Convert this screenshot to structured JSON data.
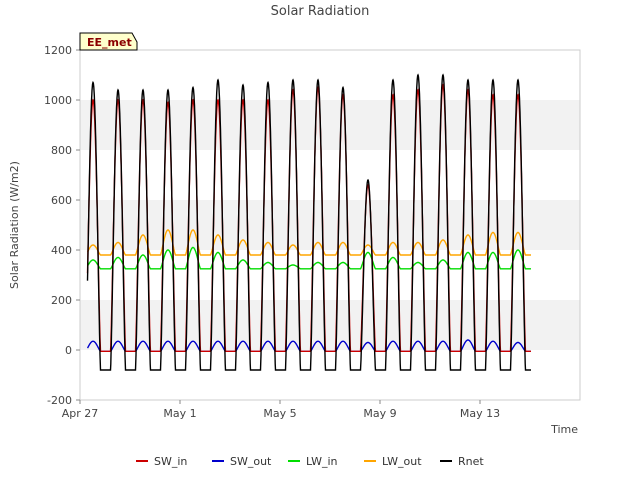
{
  "chart_data": {
    "type": "line",
    "title": "Solar Radiation",
    "xlabel": "Time",
    "ylabel": "Solar Radiation (W/m2)",
    "badge": "EE_met",
    "ylim": [
      -200,
      1200
    ],
    "yticks": [
      -200,
      0,
      200,
      400,
      600,
      800,
      1000,
      1200
    ],
    "xlim": [
      0,
      20
    ],
    "xticks": [
      {
        "day": 0,
        "label": "Apr 27"
      },
      {
        "day": 4,
        "label": "May 1"
      },
      {
        "day": 8,
        "label": "May 5"
      },
      {
        "day": 12,
        "label": "May 9"
      },
      {
        "day": 16,
        "label": "May 13"
      }
    ],
    "days": [
      0.3,
      1.3,
      2.3,
      3.3,
      4.3,
      5.3,
      6.3,
      7.3,
      8.3,
      9.3,
      10.3,
      11.3,
      12.3,
      13.3,
      14.3,
      15.3,
      16.3,
      17.3
    ],
    "series": [
      {
        "name": "SW_in",
        "color": "#cc0000",
        "daily_peak": [
          1000,
          1000,
          1000,
          990,
          1000,
          1000,
          1000,
          1000,
          1040,
          1050,
          1020,
          660,
          1020,
          1040,
          1060,
          1040,
          1020,
          1020
        ],
        "night": -5
      },
      {
        "name": "SW_out",
        "color": "#0000cc",
        "daily_peak": [
          35,
          35,
          35,
          35,
          35,
          35,
          35,
          35,
          35,
          35,
          35,
          30,
          35,
          35,
          35,
          40,
          35,
          30
        ],
        "night": -5
      },
      {
        "name": "LW_in",
        "color": "#00dd00",
        "daily_peak": [
          360,
          370,
          380,
          400,
          410,
          390,
          360,
          350,
          340,
          350,
          350,
          390,
          370,
          350,
          360,
          390,
          390,
          400
        ],
        "night": 325
      },
      {
        "name": "LW_out",
        "color": "#ffa500",
        "daily_peak": [
          420,
          430,
          460,
          480,
          480,
          460,
          440,
          430,
          420,
          430,
          430,
          420,
          430,
          430,
          440,
          460,
          470,
          470
        ],
        "night": 380
      },
      {
        "name": "Rnet",
        "color": "#000000",
        "daily_peak": [
          1070,
          1040,
          1040,
          1040,
          1050,
          1080,
          1060,
          1070,
          1080,
          1080,
          1050,
          680,
          1080,
          1100,
          1100,
          1080,
          1080,
          1080
        ],
        "night": -80
      }
    ],
    "legend_position": "bottom",
    "grid": "horizontal bands"
  }
}
